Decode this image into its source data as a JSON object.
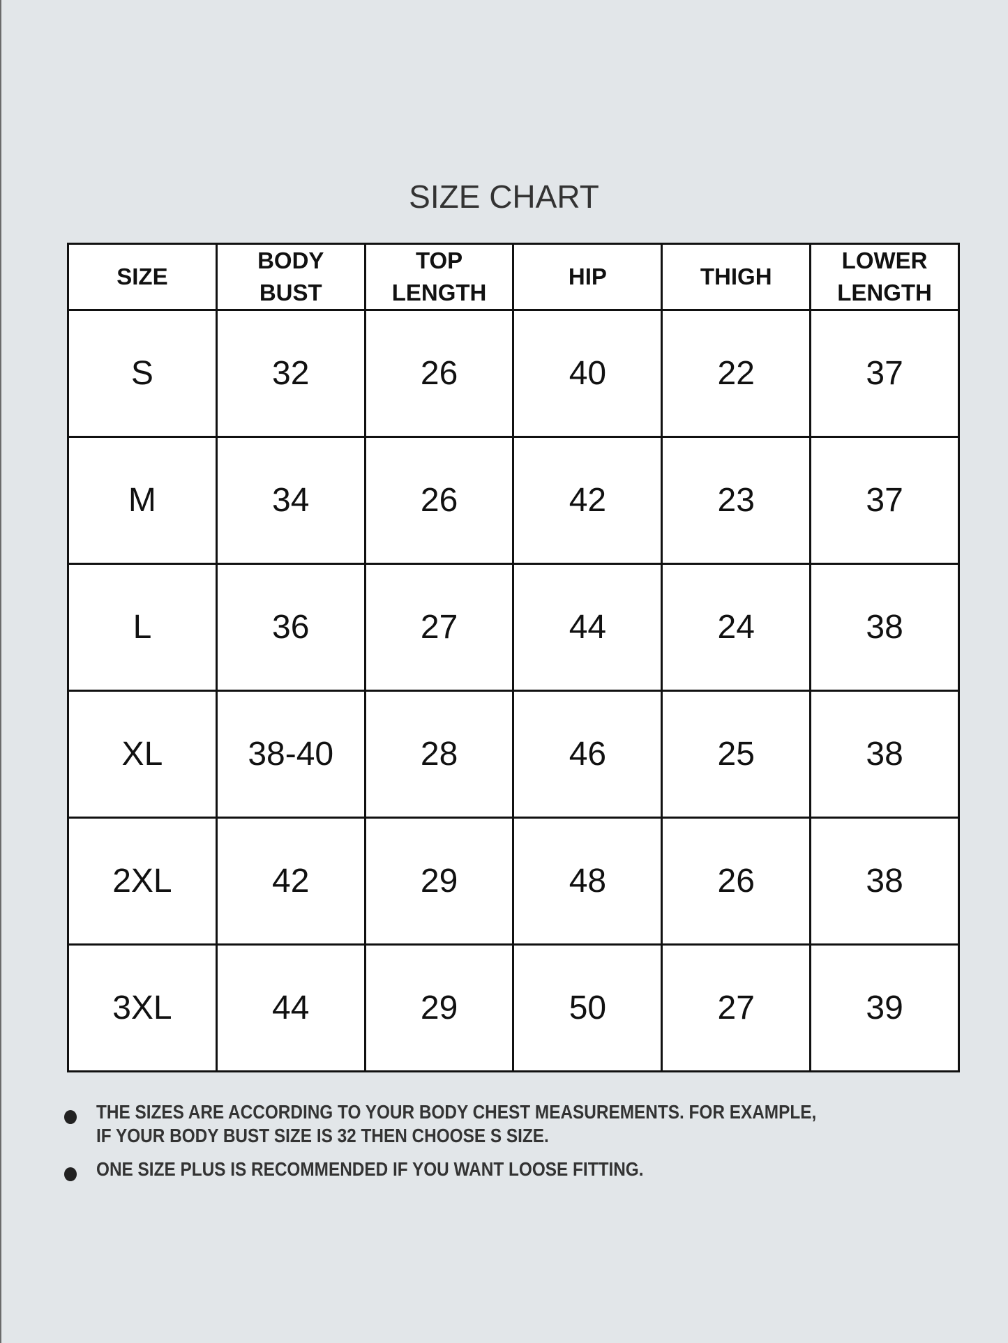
{
  "title": "SIZE CHART",
  "table": {
    "headers": [
      "SIZE",
      "BODY\nBUST",
      "TOP\nLENGTH",
      "HIP",
      "THIGH",
      "LOWER\nLENGTH"
    ],
    "rows": [
      [
        "S",
        "32",
        "26",
        "40",
        "22",
        "37"
      ],
      [
        "M",
        "34",
        "26",
        "42",
        "23",
        "37"
      ],
      [
        "L",
        "36",
        "27",
        "44",
        "24",
        "38"
      ],
      [
        "XL",
        "38-40",
        "28",
        "46",
        "25",
        "38"
      ],
      [
        "2XL",
        "42",
        "29",
        "48",
        "26",
        "38"
      ],
      [
        "3XL",
        "44",
        "29",
        "50",
        "27",
        "39"
      ]
    ]
  },
  "notes": [
    "THE SIZES ARE ACCORDING TO YOUR BODY CHEST MEASUREMENTS. FOR EXAMPLE,\nIF YOUR BODY BUST SIZE IS 32 THEN CHOOSE S SIZE.",
    "ONE SIZE PLUS IS RECOMMENDED IF YOU WANT LOOSE FITTING."
  ]
}
